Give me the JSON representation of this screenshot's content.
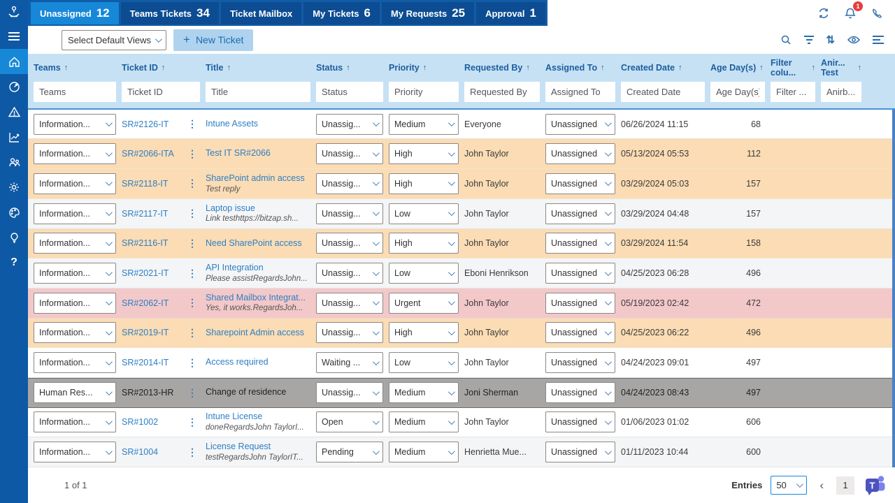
{
  "colors": {
    "bar_blue": "#115CA6",
    "tab_inactive": "#0C4C92",
    "accent_blue": "#1787D8",
    "header_bg": "#C7E1F4",
    "header_text": "#1C5E9E",
    "link_blue": "#2D7FC4",
    "row_orange": "#FBDCB4",
    "row_pink": "#F3C8C9",
    "row_selected": "#A8A5A5",
    "badge_red": "#E63E3E",
    "new_ticket_bg": "#AFD3EE"
  },
  "sidebar": {
    "icons": [
      "support-logo-icon",
      "hamburger-icon",
      "home-icon",
      "dashboard-gauge-icon",
      "alert-triangle-icon",
      "chart-icon",
      "agents-icon",
      "gear-icon",
      "palette-icon",
      "bulb-icon",
      "help-icon"
    ],
    "active": "home-icon"
  },
  "header": {
    "tabs": [
      {
        "label": "Unassigned",
        "count": "12",
        "active": true
      },
      {
        "label": "Teams Tickets",
        "count": "34",
        "active": false
      },
      {
        "label": "Ticket Mailbox",
        "count": "",
        "active": false
      },
      {
        "label": "My Tickets",
        "count": "6",
        "active": false
      },
      {
        "label": "My Requests",
        "count": "25",
        "active": false
      },
      {
        "label": "Approval",
        "count": "1",
        "active": false
      }
    ],
    "icons": [
      "refresh-icon",
      "bell-icon",
      "phone-icon"
    ],
    "bell_badge": "1"
  },
  "toolbar": {
    "views_dropdown": "Select Default Views",
    "new_ticket_label": "New Ticket",
    "new_ticket_plus": "+",
    "icons": [
      "search-icon",
      "filter-icon",
      "sort-icon",
      "eye-icon",
      "lines-icon"
    ]
  },
  "table": {
    "columns": [
      {
        "key": "teams",
        "label": "Teams",
        "filter": "Teams"
      },
      {
        "key": "ticket-id",
        "label": "Ticket ID",
        "filter": "Ticket ID"
      },
      {
        "key": "title",
        "label": "Title",
        "filter": "Title"
      },
      {
        "key": "status",
        "label": "Status",
        "filter": "Status"
      },
      {
        "key": "priority",
        "label": "Priority",
        "filter": "Priority"
      },
      {
        "key": "requested-by",
        "label": "Requested By",
        "filter": "Requested By"
      },
      {
        "key": "assigned-to",
        "label": "Assigned To",
        "filter": "Assigned To"
      },
      {
        "key": "created-date",
        "label": "Created Date",
        "filter": "Created Date"
      },
      {
        "key": "age-days",
        "label": "Age Day(s)",
        "filter": "Age Day(s)"
      },
      {
        "key": "filter-colu",
        "label": "Filter colu...",
        "filter": "Filter ..."
      },
      {
        "key": "anirb-test",
        "label": "Anir... Test",
        "filter": "Anirb..."
      }
    ],
    "sort_arrow": "↑",
    "rows": [
      {
        "team": "Information...",
        "id": "SR#2126-IT",
        "title": "Intune Assets",
        "subtitle": "",
        "status": "Unassig...",
        "priority": "Medium",
        "requested_by": "Everyone",
        "assigned_to": "Unassigned",
        "created": "06/26/2024 11:15",
        "age": "68",
        "highlight": "white"
      },
      {
        "team": "Information...",
        "id": "SR#2066-ITA",
        "title": "Test IT SR#2066",
        "subtitle": "",
        "status": "Unassig...",
        "priority": "High",
        "requested_by": "John Taylor",
        "assigned_to": "Unassigned",
        "created": "05/13/2024 05:53",
        "age": "112",
        "highlight": "orange"
      },
      {
        "team": "Information...",
        "id": "SR#2118-IT",
        "title": "SharePoint admin access",
        "subtitle": "Test reply",
        "status": "Unassig...",
        "priority": "High",
        "requested_by": "John Taylor",
        "assigned_to": "Unassigned",
        "created": "03/29/2024 05:03",
        "age": "157",
        "highlight": "orange"
      },
      {
        "team": "Information...",
        "id": "SR#2117-IT",
        "title": "Laptop issue",
        "subtitle": "Link testhttps://bitzap.sh...",
        "status": "Unassig...",
        "priority": "Low",
        "requested_by": "John Taylor",
        "assigned_to": "Unassigned",
        "created": "03/29/2024 04:48",
        "age": "157",
        "highlight": "stripe"
      },
      {
        "team": "Information...",
        "id": "SR#2116-IT",
        "title": "Need SharePoint access",
        "subtitle": "",
        "status": "Unassig...",
        "priority": "High",
        "requested_by": "John Taylor",
        "assigned_to": "Unassigned",
        "created": "03/29/2024 11:54",
        "age": "158",
        "highlight": "orange"
      },
      {
        "team": "Information...",
        "id": "SR#2021-IT",
        "title": "API Integration",
        "subtitle": "Please assistRegardsJohn...",
        "status": "Unassig...",
        "priority": "Low",
        "requested_by": "Eboni Henrikson",
        "assigned_to": "Unassigned",
        "created": "04/25/2023 06:28",
        "age": "496",
        "highlight": "stripe"
      },
      {
        "team": "Information...",
        "id": "SR#2062-IT",
        "title": "Shared Mailbox Integrat...",
        "subtitle": "Yes, it works.RegardsJoh...",
        "status": "Unassig...",
        "priority": "Urgent",
        "requested_by": "John Taylor",
        "assigned_to": "Unassigned",
        "created": "05/19/2023 02:42",
        "age": "472",
        "highlight": "pink"
      },
      {
        "team": "Information...",
        "id": "SR#2019-IT",
        "title": "Sharepoint Admin access",
        "subtitle": "",
        "status": "Unassig...",
        "priority": "High",
        "requested_by": "John Taylor",
        "assigned_to": "Unassigned",
        "created": "04/25/2023 06:22",
        "age": "496",
        "highlight": "orange"
      },
      {
        "team": "Information...",
        "id": "SR#2014-IT",
        "title": "Access required",
        "subtitle": "",
        "status": "Waiting ...",
        "priority": "Low",
        "requested_by": "John Taylor",
        "assigned_to": "Unassigned",
        "created": "04/24/2023 09:01",
        "age": "497",
        "highlight": "white"
      },
      {
        "team": "Human Res...",
        "id": "SR#2013-HR",
        "title": "Change of residence",
        "subtitle": "",
        "status": "Unassig...",
        "priority": "Medium",
        "requested_by": "Joni Sherman",
        "assigned_to": "Unassigned",
        "created": "04/24/2023 08:43",
        "age": "497",
        "highlight": "selected"
      },
      {
        "team": "Information...",
        "id": "SR#1002",
        "title": "Intune License",
        "subtitle": "doneRegardsJohn TaylorI...",
        "status": "Open",
        "priority": "Medium",
        "requested_by": "John Taylor",
        "assigned_to": "Unassigned",
        "created": "01/06/2023 01:02",
        "age": "606",
        "highlight": "white"
      },
      {
        "team": "Information...",
        "id": "SR#1004",
        "title": "License Request",
        "subtitle": "testRegardsJohn TaylorIT...",
        "status": "Pending",
        "priority": "Medium",
        "requested_by": "Henrietta Mue...",
        "assigned_to": "Unassigned",
        "created": "01/11/2023 10:44",
        "age": "600",
        "highlight": "stripe"
      }
    ]
  },
  "footer": {
    "page_info": "1 of 1",
    "entries_label": "Entries",
    "entries_value": "50",
    "prev_arrow": "‹",
    "page_number": "1"
  }
}
